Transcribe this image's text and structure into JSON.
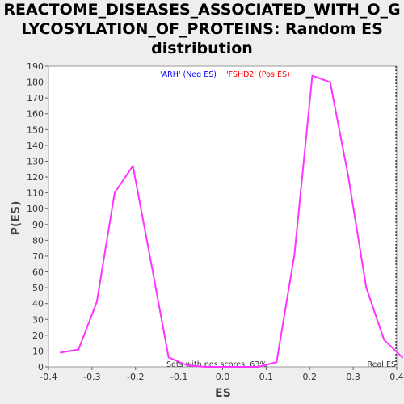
{
  "chart_data": {
    "type": "line",
    "title_lines": [
      "REACTOME_DISEASES_ASSOCIATED_WITH_O_G",
      "LYCOSYLATION_OF_PROTEINS: Random ES",
      "distribution"
    ],
    "xlabel": "ES",
    "ylabel": "P(ES)",
    "xlim": [
      -0.4,
      0.4
    ],
    "ylim": [
      0,
      190
    ],
    "x_ticks": [
      "-0.4",
      "-0.3",
      "-0.2",
      "-0.1",
      "0.0",
      "0.1",
      "0.2",
      "0.3",
      "0.4"
    ],
    "x_tick_values": [
      -0.4,
      -0.3,
      -0.2,
      -0.1,
      0.0,
      0.1,
      0.2,
      0.3,
      0.4
    ],
    "y_ticks": [
      "0",
      "10",
      "20",
      "30",
      "40",
      "50",
      "60",
      "70",
      "80",
      "90",
      "100",
      "110",
      "120",
      "130",
      "140",
      "150",
      "160",
      "170",
      "180",
      "190"
    ],
    "y_tick_values": [
      0,
      10,
      20,
      30,
      40,
      50,
      60,
      70,
      80,
      90,
      100,
      110,
      120,
      130,
      140,
      150,
      160,
      170,
      180,
      190
    ],
    "series": [
      {
        "color": "#ff33ff",
        "x": [
          -0.372,
          -0.331,
          -0.289,
          -0.248,
          -0.206,
          -0.165,
          -0.124,
          -0.082,
          -0.041,
          0.0,
          0.041,
          0.082,
          0.124,
          0.165,
          0.206,
          0.247,
          0.289,
          0.33,
          0.371,
          0.413
        ],
        "y": [
          9,
          11,
          41,
          110,
          127,
          67,
          6,
          1,
          0,
          0,
          0,
          0,
          3,
          71,
          184,
          180,
          120,
          50,
          17,
          6
        ]
      }
    ],
    "annotations": {
      "neg_label": "'ARH' (Neg ES)",
      "pos_label": "'FSHD2' (Pos ES)",
      "sets_with_pos": "Sets with pos scores: 63%",
      "real_es": "Real ES"
    },
    "colors": {
      "neg": "#0000ff",
      "pos": "#ff0000",
      "line": "#ff33ff"
    },
    "grid": false
  }
}
